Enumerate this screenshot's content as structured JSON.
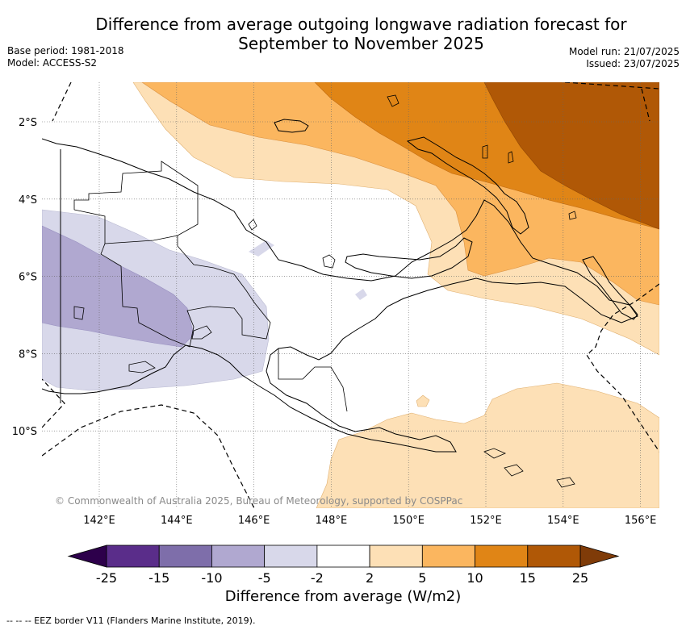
{
  "title_line1": "Difference from average outgoing longwave radiation forecast for",
  "title_line2": "September to November 2025",
  "meta_left": {
    "base_period": "Base period: 1981-2018",
    "model": "Model: ACCESS-S2"
  },
  "meta_right": {
    "model_run": "Model run: 21/07/2025",
    "issued": "Issued: 23/07/2025"
  },
  "copyright": "© Commonwealth of Australia 2025, Bureau of Meteorology, supported by COSPPac",
  "latitude_labels": [
    "2°S",
    "4°S",
    "6°S",
    "8°S",
    "10°S"
  ],
  "longitude_labels": [
    "142°E",
    "144°E",
    "146°E",
    "148°E",
    "150°E",
    "152°E",
    "154°E",
    "156°E"
  ],
  "colorbar": {
    "boundaries": [
      "-25",
      "-15",
      "-10",
      "-5",
      "-2",
      "2",
      "5",
      "10",
      "15",
      "25"
    ],
    "colors": [
      "#5a2d8a",
      "#7e6eaa",
      "#b0a8d0",
      "#d8d8ea",
      "#ffffff",
      "#fde0b6",
      "#fbb65f",
      "#e08516",
      "#b05806"
    ],
    "extend_low_color": "#2d004b",
    "extend_high_color": "#7f3b08",
    "title": "Difference from average (W/m2)"
  },
  "footnote": "--  --  -- EEZ border V11 (Flanders Marine Institute, 2019)."
}
